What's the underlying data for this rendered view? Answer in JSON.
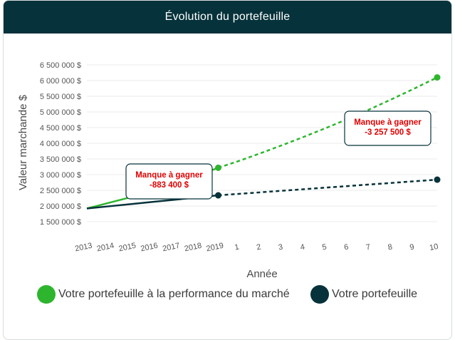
{
  "header": {
    "title": "Évolution du portefeuille"
  },
  "chart_data": {
    "type": "line",
    "title": "Évolution du portefeuille",
    "xlabel": "Année",
    "ylabel": "Valeur marchande $",
    "ylim": [
      1500000,
      6500000
    ],
    "y_ticks": [
      1500000,
      2000000,
      2500000,
      3000000,
      3500000,
      4000000,
      4500000,
      5000000,
      5500000,
      6000000,
      6500000
    ],
    "y_tick_labels": [
      "1 500 000 $",
      "2 000 000 $",
      "2 500 000 $",
      "3 000 000 $",
      "3 500 000 $",
      "4 000 000 $",
      "4 500 000 $",
      "5 000 000 $",
      "5 500 000 $",
      "6 000 000 $",
      "6 500 000 $"
    ],
    "x_labels": [
      "2013",
      "2014",
      "2015",
      "2016",
      "2017",
      "2018",
      "2019",
      "1",
      "2",
      "3",
      "4",
      "5",
      "6",
      "7",
      "8",
      "9",
      "10"
    ],
    "grid": "horizontal",
    "legend_position": "bottom",
    "series": [
      {
        "name": "Votre portefeuille à la performance du marché",
        "color": "#2db52d",
        "historical": [
          1920000,
          2100000,
          2280000,
          2480000,
          2700000,
          2950000,
          3220000
        ],
        "projected": [
          3220000,
          3450000,
          3700000,
          3960000,
          4230000,
          4510000,
          4800000,
          5110000,
          5430000,
          5760000,
          6100000
        ]
      },
      {
        "name": "Votre portefeuille",
        "color": "#06323b",
        "historical": [
          1920000,
          1990000,
          2060000,
          2130000,
          2200000,
          2270000,
          2340000
        ],
        "projected": [
          2340000,
          2390000,
          2440000,
          2490000,
          2540000,
          2590000,
          2640000,
          2690000,
          2740000,
          2790000,
          2840000
        ]
      }
    ],
    "annotations": [
      {
        "title": "Manque à gagner",
        "value": "-883 400 $",
        "color": "#e00000"
      },
      {
        "title": "Manque à gagner",
        "value": "-3 257 500 $",
        "color": "#e00000"
      }
    ]
  }
}
